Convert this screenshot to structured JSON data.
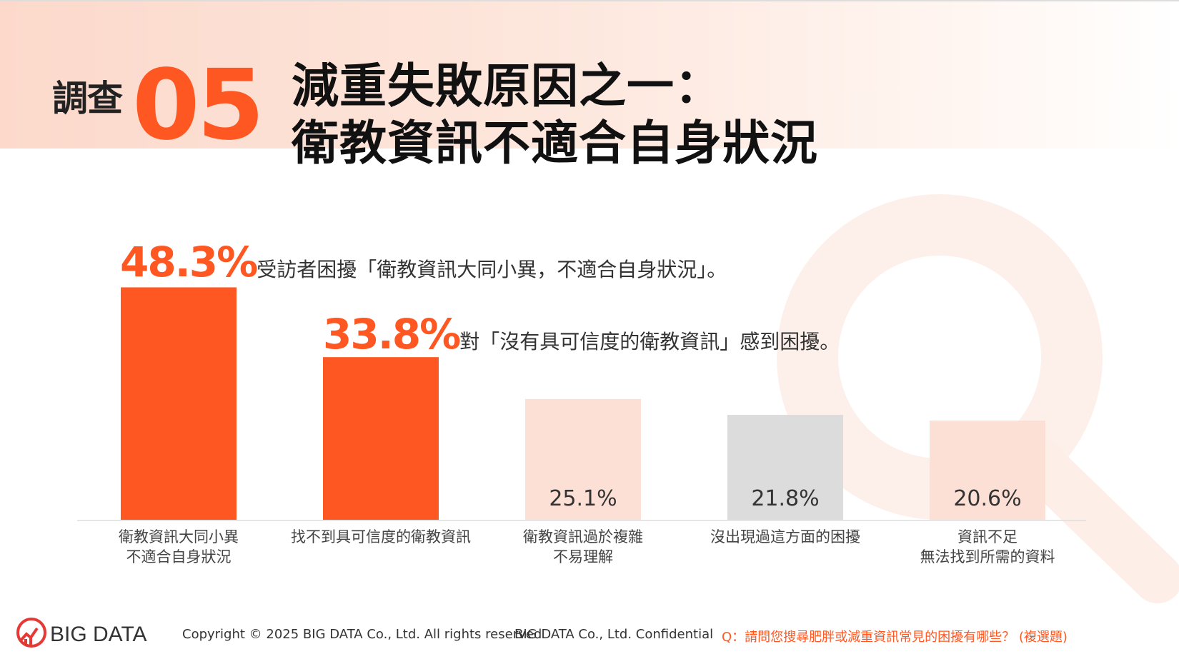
{
  "header": {
    "survey_label": "調查",
    "survey_number": "05",
    "title_line1": "減重失敗原因之一：",
    "title_line2": "衛教資訊不適合自身狀況"
  },
  "callouts": [
    {
      "value": "48.3%",
      "text": "受訪者困擾「衛教資訊大同小異，不適合自身狀況」。"
    },
    {
      "value": "33.8%",
      "text": "對「沒有具可信度的衛教資訊」感到困擾。"
    }
  ],
  "chart_data": {
    "type": "bar",
    "categories": [
      [
        "衛教資訊大同小異",
        "不適合自身狀況"
      ],
      [
        "找不到具可信度的衛教資訊"
      ],
      [
        "衛教資訊過於複雜",
        "不易理解"
      ],
      [
        "沒出現過這方面的困擾"
      ],
      [
        "資訊不足",
        "無法找到所需的資料"
      ]
    ],
    "values": [
      48.3,
      33.8,
      25.1,
      21.8,
      20.6
    ],
    "value_labels": [
      "",
      "",
      "25.1%",
      "21.8%",
      "20.6%"
    ],
    "bar_colors": [
      "#ff5722",
      "#ff5722",
      "#fde0d5",
      "#dcdcdc",
      "#fde0d5"
    ],
    "unit": "%",
    "ylim": [
      0,
      50
    ],
    "grid": false
  },
  "footer": {
    "logo_text": "BIG DATA",
    "copyright": "Copyright © 2025 BIG DATA Co., Ltd. All rights reserved",
    "confidential": "BIG DATA Co., Ltd. Confidential",
    "question": "Q：請問您搜尋肥胖或減重資訊常見的困擾有哪些？ (複選題)"
  },
  "colors": {
    "accent": "#ff5722",
    "light_accent": "#fde0d5",
    "neutral_bar": "#dcdcdc"
  },
  "icons": [
    "magnifier-icon",
    "bigdata-logo-icon"
  ]
}
